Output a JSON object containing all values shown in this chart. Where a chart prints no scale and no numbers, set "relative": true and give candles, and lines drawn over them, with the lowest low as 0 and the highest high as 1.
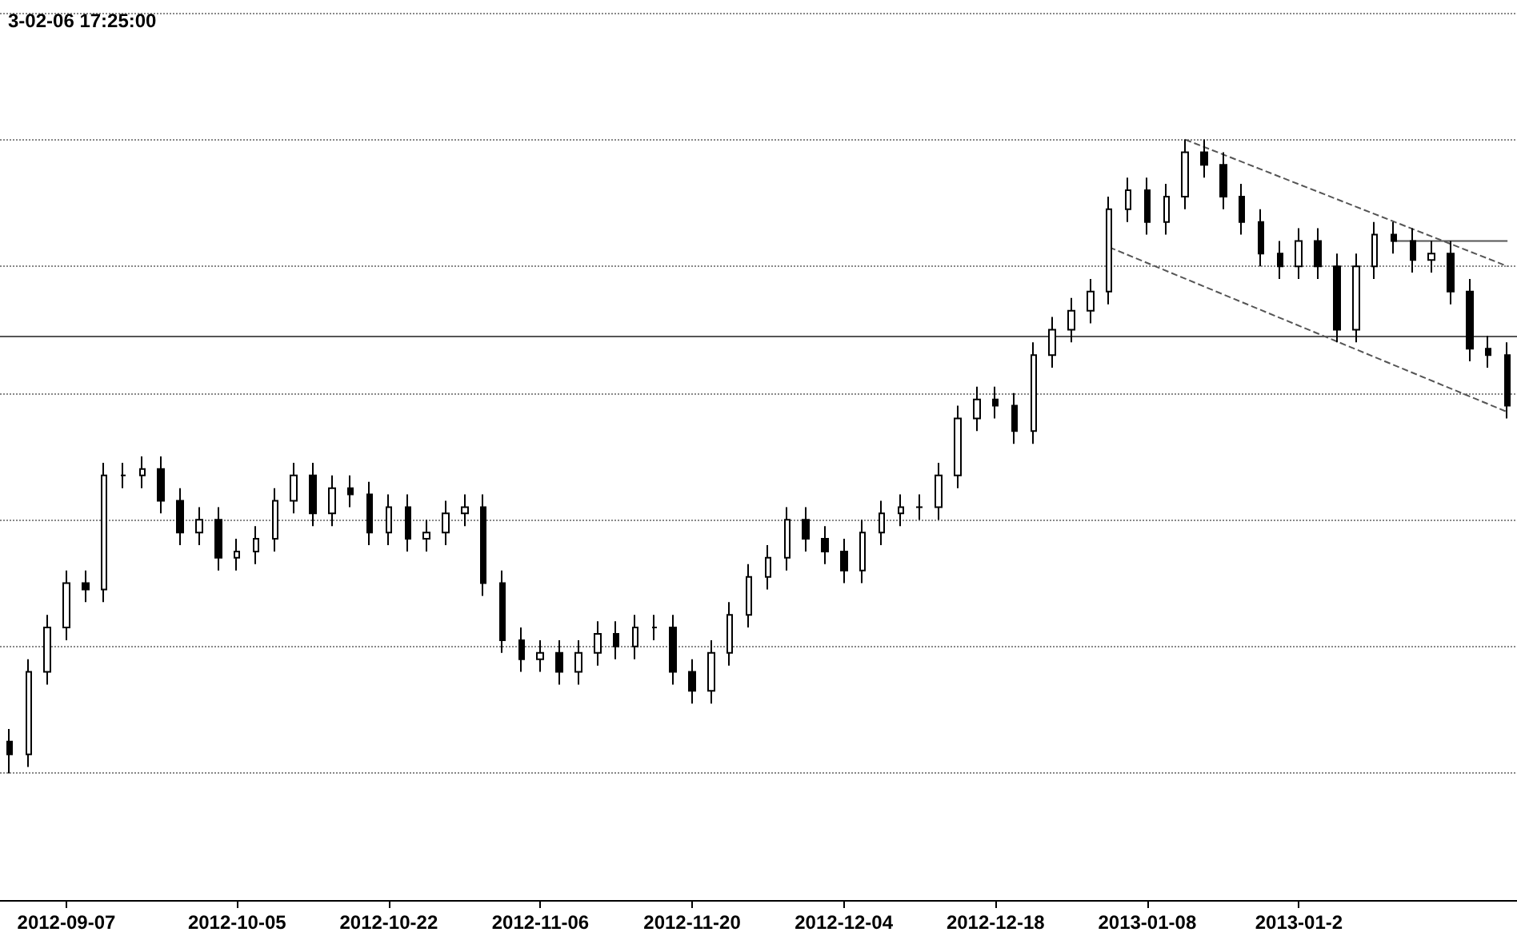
{
  "chart_data": {
    "type": "candlestick",
    "title": "3-02-06 17:25:00",
    "relative": true,
    "color": "#000000",
    "grid": "y",
    "categories": [
      null,
      null,
      null,
      "2012-09-07",
      null,
      null,
      null,
      null,
      null,
      null,
      null,
      null,
      "2012-10-05",
      null,
      null,
      null,
      null,
      null,
      null,
      null,
      "2012-10-22",
      null,
      null,
      null,
      null,
      null,
      null,
      null,
      "2012-11-06",
      null,
      null,
      null,
      null,
      null,
      null,
      null,
      "2012-11-20",
      null,
      null,
      null,
      null,
      null,
      null,
      null,
      "2012-12-04",
      null,
      null,
      null,
      null,
      null,
      null,
      null,
      "2012-12-18",
      null,
      null,
      null,
      null,
      null,
      null,
      null,
      "2013-01-08",
      null,
      null,
      null,
      null,
      null,
      null,
      null,
      "2013-01-2",
      null,
      null,
      null,
      null,
      null,
      null,
      null,
      null,
      null,
      null,
      null
    ],
    "ohlc": [
      [
        0.05,
        0.07,
        0.0,
        0.03
      ],
      [
        0.03,
        0.18,
        0.01,
        0.16
      ],
      [
        0.16,
        0.25,
        0.14,
        0.23
      ],
      [
        0.23,
        0.32,
        0.21,
        0.3
      ],
      [
        0.3,
        0.32,
        0.27,
        0.29
      ],
      [
        0.29,
        0.49,
        0.27,
        0.47
      ],
      [
        0.47,
        0.49,
        0.45,
        0.47
      ],
      [
        0.47,
        0.5,
        0.45,
        0.48
      ],
      [
        0.48,
        0.5,
        0.41,
        0.43
      ],
      [
        0.43,
        0.45,
        0.36,
        0.38
      ],
      [
        0.38,
        0.42,
        0.36,
        0.4
      ],
      [
        0.4,
        0.42,
        0.32,
        0.34
      ],
      [
        0.34,
        0.37,
        0.32,
        0.35
      ],
      [
        0.35,
        0.39,
        0.33,
        0.37
      ],
      [
        0.37,
        0.45,
        0.35,
        0.43
      ],
      [
        0.43,
        0.49,
        0.41,
        0.47
      ],
      [
        0.47,
        0.49,
        0.39,
        0.41
      ],
      [
        0.41,
        0.47,
        0.39,
        0.45
      ],
      [
        0.45,
        0.47,
        0.42,
        0.44
      ],
      [
        0.44,
        0.46,
        0.36,
        0.38
      ],
      [
        0.38,
        0.44,
        0.36,
        0.42
      ],
      [
        0.42,
        0.44,
        0.35,
        0.37
      ],
      [
        0.37,
        0.4,
        0.35,
        0.38
      ],
      [
        0.38,
        0.43,
        0.36,
        0.41
      ],
      [
        0.41,
        0.44,
        0.39,
        0.42
      ],
      [
        0.42,
        0.44,
        0.28,
        0.3
      ],
      [
        0.3,
        0.32,
        0.19,
        0.21
      ],
      [
        0.21,
        0.23,
        0.16,
        0.18
      ],
      [
        0.18,
        0.21,
        0.16,
        0.19
      ],
      [
        0.19,
        0.21,
        0.14,
        0.16
      ],
      [
        0.16,
        0.21,
        0.14,
        0.19
      ],
      [
        0.19,
        0.24,
        0.17,
        0.22
      ],
      [
        0.22,
        0.24,
        0.18,
        0.2
      ],
      [
        0.2,
        0.25,
        0.18,
        0.23
      ],
      [
        0.23,
        0.25,
        0.21,
        0.23
      ],
      [
        0.23,
        0.25,
        0.14,
        0.16
      ],
      [
        0.16,
        0.18,
        0.11,
        0.13
      ],
      [
        0.13,
        0.21,
        0.11,
        0.19
      ],
      [
        0.19,
        0.27,
        0.17,
        0.25
      ],
      [
        0.25,
        0.33,
        0.23,
        0.31
      ],
      [
        0.31,
        0.36,
        0.29,
        0.34
      ],
      [
        0.34,
        0.42,
        0.32,
        0.4
      ],
      [
        0.4,
        0.42,
        0.35,
        0.37
      ],
      [
        0.37,
        0.39,
        0.33,
        0.35
      ],
      [
        0.35,
        0.37,
        0.3,
        0.32
      ],
      [
        0.32,
        0.4,
        0.3,
        0.38
      ],
      [
        0.38,
        0.43,
        0.36,
        0.41
      ],
      [
        0.41,
        0.44,
        0.39,
        0.42
      ],
      [
        0.42,
        0.44,
        0.4,
        0.42
      ],
      [
        0.42,
        0.49,
        0.4,
        0.47
      ],
      [
        0.47,
        0.58,
        0.45,
        0.56
      ],
      [
        0.56,
        0.61,
        0.54,
        0.59
      ],
      [
        0.59,
        0.61,
        0.56,
        0.58
      ],
      [
        0.58,
        0.6,
        0.52,
        0.54
      ],
      [
        0.54,
        0.68,
        0.52,
        0.66
      ],
      [
        0.66,
        0.72,
        0.64,
        0.7
      ],
      [
        0.7,
        0.75,
        0.68,
        0.73
      ],
      [
        0.73,
        0.78,
        0.71,
        0.76
      ],
      [
        0.76,
        0.91,
        0.74,
        0.89
      ],
      [
        0.89,
        0.94,
        0.87,
        0.92
      ],
      [
        0.92,
        0.94,
        0.85,
        0.87
      ],
      [
        0.87,
        0.93,
        0.85,
        0.91
      ],
      [
        0.91,
        1.0,
        0.89,
        0.98
      ],
      [
        0.98,
        1.0,
        0.94,
        0.96
      ],
      [
        0.96,
        0.98,
        0.89,
        0.91
      ],
      [
        0.91,
        0.93,
        0.85,
        0.87
      ],
      [
        0.87,
        0.89,
        0.8,
        0.82
      ],
      [
        0.82,
        0.84,
        0.78,
        0.8
      ],
      [
        0.8,
        0.86,
        0.78,
        0.84
      ],
      [
        0.84,
        0.86,
        0.78,
        0.8
      ],
      [
        0.8,
        0.82,
        0.68,
        0.7
      ],
      [
        0.7,
        0.82,
        0.68,
        0.8
      ],
      [
        0.8,
        0.87,
        0.78,
        0.85
      ],
      [
        0.85,
        0.87,
        0.82,
        0.84
      ],
      [
        0.84,
        0.86,
        0.79,
        0.81
      ],
      [
        0.81,
        0.84,
        0.79,
        0.82
      ],
      [
        0.82,
        0.84,
        0.74,
        0.76
      ],
      [
        0.76,
        0.78,
        0.65,
        0.67
      ],
      [
        0.67,
        0.69,
        0.64,
        0.66
      ],
      [
        0.66,
        0.68,
        0.56,
        0.58
      ]
    ],
    "series": [
      {
        "type": "line",
        "color": "#555555",
        "line_style": "dashed",
        "values": [
          null,
          null,
          null,
          null,
          null,
          null,
          null,
          null,
          null,
          null,
          null,
          null,
          null,
          null,
          null,
          null,
          null,
          null,
          null,
          null,
          null,
          null,
          null,
          null,
          null,
          null,
          null,
          null,
          null,
          null,
          null,
          null,
          null,
          null,
          null,
          null,
          null,
          null,
          null,
          null,
          null,
          null,
          null,
          null,
          null,
          null,
          null,
          null,
          null,
          null,
          null,
          null,
          null,
          null,
          null,
          null,
          null,
          null,
          null,
          null,
          null,
          null,
          1.0,
          null,
          null,
          null,
          null,
          null,
          null,
          null,
          null,
          null,
          null,
          null,
          null,
          null,
          null,
          null,
          null,
          0.8
        ]
      },
      {
        "type": "line",
        "color": "#555555",
        "line_style": "dashed",
        "values": [
          null,
          null,
          null,
          null,
          null,
          null,
          null,
          null,
          null,
          null,
          null,
          null,
          null,
          null,
          null,
          null,
          null,
          null,
          null,
          null,
          null,
          null,
          null,
          null,
          null,
          null,
          null,
          null,
          null,
          null,
          null,
          null,
          null,
          null,
          null,
          null,
          null,
          null,
          null,
          null,
          null,
          null,
          null,
          null,
          null,
          null,
          null,
          null,
          null,
          null,
          null,
          null,
          null,
          null,
          null,
          null,
          null,
          null,
          0.83,
          null,
          null,
          null,
          null,
          null,
          null,
          null,
          null,
          null,
          null,
          null,
          null,
          null,
          null,
          null,
          null,
          null,
          null,
          null,
          null,
          0.57
        ]
      },
      {
        "type": "line",
        "color": "#555555",
        "line_style": "solid",
        "values": [
          null,
          null,
          null,
          null,
          null,
          null,
          null,
          null,
          null,
          null,
          null,
          null,
          null,
          null,
          null,
          null,
          null,
          null,
          null,
          null,
          null,
          null,
          null,
          null,
          null,
          null,
          null,
          null,
          null,
          null,
          null,
          null,
          null,
          null,
          null,
          null,
          null,
          null,
          null,
          null,
          null,
          null,
          null,
          null,
          null,
          null,
          null,
          null,
          null,
          null,
          null,
          null,
          null,
          null,
          null,
          null,
          null,
          null,
          null,
          null,
          null,
          null,
          null,
          null,
          null,
          null,
          null,
          null,
          null,
          null,
          null,
          null,
          null,
          0.84,
          null,
          null,
          null,
          null,
          null,
          0.84
        ]
      }
    ],
    "ref_lines": [
      {
        "axis": "y",
        "value": 0.69,
        "color": "#555555"
      }
    ]
  }
}
